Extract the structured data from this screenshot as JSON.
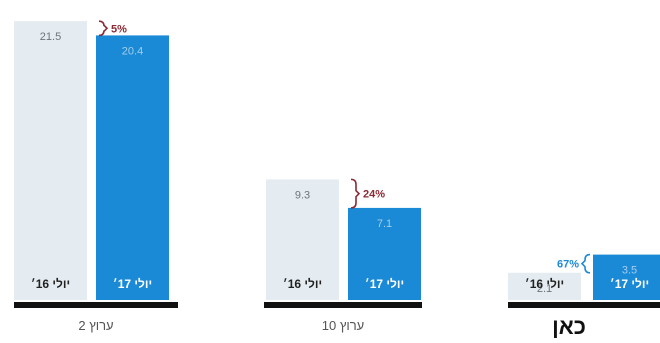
{
  "colors": {
    "bar_2016": "#e4ecf1",
    "bar_2017": "#1b8ad6",
    "value_2016_text": "#6f7478",
    "value_2017_text": "#a5cdec",
    "brace": "#8a2a35",
    "baseline": "#111111",
    "bar_label": "#222222",
    "bar_label_on_blue": "#ffffff"
  },
  "chart_data": {
    "type": "bar",
    "ylim": [
      0,
      21.5
    ],
    "series": [
      {
        "name": "יולי 16׳",
        "values": [
          21.5,
          9.3,
          2.1
        ]
      },
      {
        "name": "יולי 17׳",
        "values": [
          20.4,
          7.1,
          3.5
        ]
      }
    ],
    "groups": [
      {
        "name": "ערוץ 2",
        "label_2016": "יולי 16׳",
        "label_2017": "יולי 17׳",
        "value_2016": "21.5",
        "value_2017": "20.4",
        "change": "5%"
      },
      {
        "name": "ערוץ 10",
        "label_2016": "יולי 16׳",
        "label_2017": "יולי 17׳",
        "value_2016": "9.3",
        "value_2017": "7.1",
        "change": "24%"
      },
      {
        "name": "כאן",
        "label_2016": "יולי 16׳",
        "label_2017": "יולי 17׳",
        "value_2016": "2.1",
        "value_2017": "3.5",
        "change": "67%"
      }
    ]
  }
}
